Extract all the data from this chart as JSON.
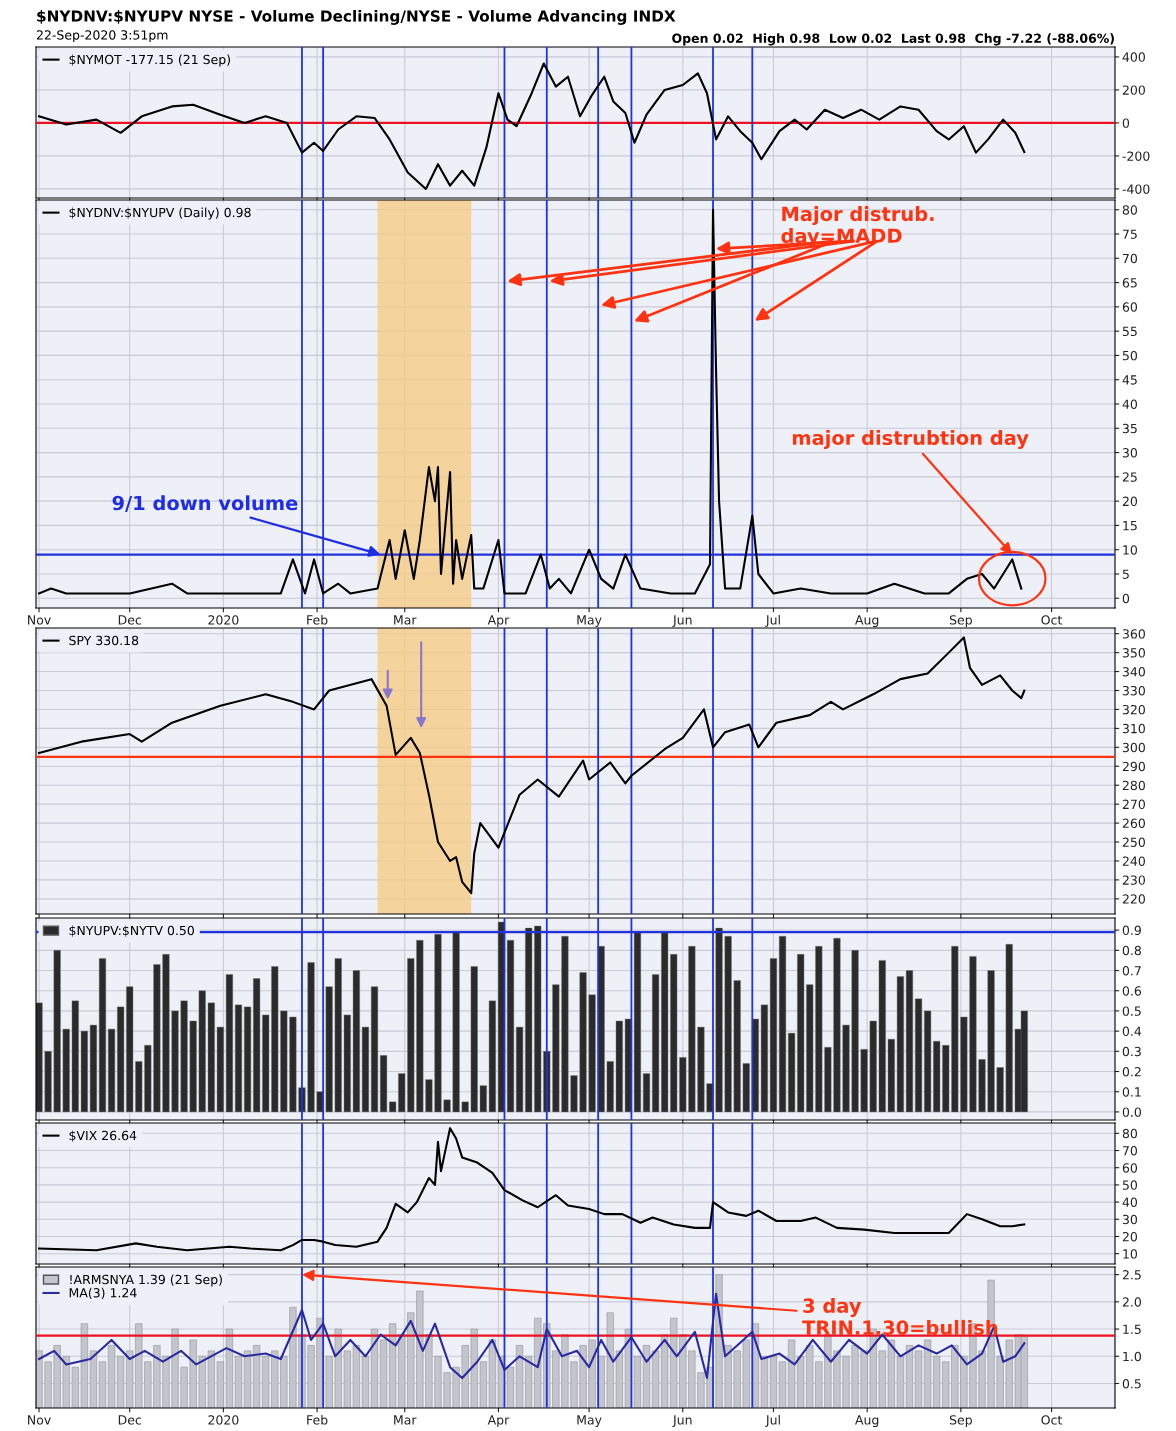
{
  "chart_data": [
    {
      "type": "line",
      "title": "$NYDNV:$NYUPV NYSE - Volume Declining/NYSE - Volume Advancing INDX",
      "subtitle": "22-Sep-2020 3:51pm",
      "annotations": [
        "Open 0.02  High 0.98  Low 0.02  Last 0.98  Chg -7.22 (-88.06%)"
      ],
      "series": [
        {
          "name": "$NYMOT -177.15 (21 Sep)",
          "color": "#000000",
          "x": [
            "2019-11-01",
            "2019-11-10",
            "2019-11-20",
            "2019-11-28",
            "2019-12-05",
            "2019-12-15",
            "2019-12-22",
            "2019-12-31",
            "2020-01-08",
            "2020-01-15",
            "2020-01-22",
            "2020-01-27",
            "2020-01-31",
            "2020-02-03",
            "2020-02-08",
            "2020-02-14",
            "2020-02-20",
            "2020-02-25",
            "2020-03-02",
            "2020-03-08",
            "2020-03-12",
            "2020-03-16",
            "2020-03-20",
            "2020-03-24",
            "2020-03-28",
            "2020-04-01",
            "2020-04-04",
            "2020-04-07",
            "2020-04-12",
            "2020-04-16",
            "2020-04-20",
            "2020-04-24",
            "2020-04-28",
            "2020-05-02",
            "2020-05-06",
            "2020-05-09",
            "2020-05-13",
            "2020-05-16",
            "2020-05-20",
            "2020-05-26",
            "2020-06-01",
            "2020-06-06",
            "2020-06-09",
            "2020-06-12",
            "2020-06-16",
            "2020-06-20",
            "2020-06-24",
            "2020-06-27",
            "2020-07-03",
            "2020-07-08",
            "2020-07-12",
            "2020-07-18",
            "2020-07-24",
            "2020-07-30",
            "2020-08-05",
            "2020-08-12",
            "2020-08-18",
            "2020-08-24",
            "2020-08-28",
            "2020-09-02",
            "2020-09-06",
            "2020-09-10",
            "2020-09-15",
            "2020-09-19",
            "2020-09-22"
          ],
          "values": [
            40,
            -10,
            20,
            -60,
            40,
            100,
            110,
            50,
            0,
            40,
            0,
            -180,
            -120,
            -170,
            -40,
            40,
            30,
            -100,
            -300,
            -400,
            -250,
            -380,
            -290,
            -380,
            -150,
            180,
            20,
            -20,
            180,
            360,
            220,
            280,
            40,
            170,
            280,
            130,
            60,
            -120,
            50,
            200,
            230,
            300,
            180,
            -100,
            40,
            -50,
            -120,
            -220,
            -50,
            20,
            -40,
            80,
            30,
            80,
            20,
            100,
            80,
            -50,
            -100,
            -20,
            -180,
            -100,
            20,
            -60,
            -177
          ]
        }
      ],
      "xlim": [
        "2019-10-31",
        "2020-10-22"
      ],
      "ylim": [
        -455,
        460
      ],
      "yticks": [
        -400,
        -200,
        0,
        200,
        400
      ],
      "xticks": [
        {
          "value": "2019-11-01",
          "label": null
        },
        {
          "value": "2019-12-01",
          "label": null
        },
        {
          "value": "2020-01-01",
          "label": null
        },
        {
          "value": "2020-02-01",
          "label": null
        },
        {
          "value": "2020-03-01",
          "label": null
        },
        {
          "value": "2020-04-01",
          "label": null
        },
        {
          "value": "2020-05-01",
          "label": null
        },
        {
          "value": "2020-06-01",
          "label": null
        },
        {
          "value": "2020-07-01",
          "label": null
        },
        {
          "value": "2020-08-01",
          "label": null
        },
        {
          "value": "2020-09-01",
          "label": null
        },
        {
          "value": "2020-10-01",
          "label": null
        }
      ],
      "tick_labels": "y",
      "grid": true,
      "legend": "top left",
      "ref_lines": [
        {
          "axis": "y",
          "value": 0,
          "color": "#ee1122"
        },
        {
          "axis": "x",
          "value": "2020-01-27",
          "color": "#2233dd"
        },
        {
          "axis": "x",
          "value": "2020-02-03",
          "color": "#2233dd"
        },
        {
          "axis": "x",
          "value": "2020-04-03",
          "color": "#2233dd"
        },
        {
          "axis": "x",
          "value": "2020-04-17",
          "color": "#2233dd"
        },
        {
          "axis": "x",
          "value": "2020-05-04",
          "color": "#2233dd"
        },
        {
          "axis": "x",
          "value": "2020-05-15",
          "color": "#2233dd"
        },
        {
          "axis": "x",
          "value": "2020-06-11",
          "color": "#2233dd"
        },
        {
          "axis": "x",
          "value": "2020-06-24",
          "color": "#2233dd"
        }
      ]
    },
    {
      "type": "line",
      "annotations": [
        "Major distrub.\nday=MADD",
        {
          "text": "9/1 down volume",
          "x": "2020-02-22",
          "y": 9
        },
        {
          "text": "major distrubtion day",
          "x": "2020-09-18",
          "y": 9
        }
      ],
      "series": [
        {
          "name": "$NYDNV:$NYUPV (Daily) 0.98",
          "color": "#000000",
          "x": [
            "2019-11-01",
            "2019-11-05",
            "2019-11-10",
            "2019-11-20",
            "2019-12-01",
            "2019-12-15",
            "2019-12-20",
            "2020-01-05",
            "2020-01-20",
            "2020-01-24",
            "2020-01-28",
            "2020-01-31",
            "2020-02-03",
            "2020-02-08",
            "2020-02-12",
            "2020-02-21",
            "2020-02-25",
            "2020-02-27",
            "2020-03-01",
            "2020-03-04",
            "2020-03-06",
            "2020-03-09",
            "2020-03-11",
            "2020-03-12",
            "2020-03-13",
            "2020-03-16",
            "2020-03-17",
            "2020-03-18",
            "2020-03-20",
            "2020-03-23",
            "2020-03-24",
            "2020-03-27",
            "2020-04-01",
            "2020-04-03",
            "2020-04-10",
            "2020-04-15",
            "2020-04-18",
            "2020-04-21",
            "2020-04-25",
            "2020-05-01",
            "2020-05-05",
            "2020-05-09",
            "2020-05-13",
            "2020-05-18",
            "2020-05-28",
            "2020-06-05",
            "2020-06-10",
            "2020-06-11",
            "2020-06-12",
            "2020-06-13",
            "2020-06-15",
            "2020-06-20",
            "2020-06-24",
            "2020-06-26",
            "2020-07-01",
            "2020-07-10",
            "2020-07-20",
            "2020-08-01",
            "2020-08-10",
            "2020-08-20",
            "2020-08-28",
            "2020-09-03",
            "2020-09-08",
            "2020-09-12",
            "2020-09-18",
            "2020-09-21"
          ],
          "values": [
            1,
            2,
            1,
            1,
            1,
            3,
            1,
            1,
            1,
            8,
            1,
            8,
            1,
            3,
            1,
            2,
            12,
            4,
            14,
            4,
            12,
            27,
            20,
            27,
            5,
            26,
            3,
            12,
            4,
            13,
            2,
            2,
            12,
            1,
            1,
            9,
            2,
            4,
            1,
            10,
            4,
            2,
            9,
            2,
            1,
            1,
            7,
            80,
            47,
            20,
            2,
            2,
            17,
            5,
            1,
            2,
            1,
            1,
            3,
            1,
            1,
            4,
            5,
            2,
            8,
            2
          ]
        }
      ],
      "xlim": [
        "2019-10-31",
        "2020-10-22"
      ],
      "ylim": [
        -2,
        82
      ],
      "yticks": [
        0,
        5,
        10,
        15,
        20,
        25,
        30,
        35,
        40,
        45,
        50,
        55,
        60,
        65,
        70,
        75,
        80
      ],
      "xticks": [
        {
          "value": "2019-11-01",
          "label": "Nov"
        },
        {
          "value": "2019-12-01",
          "label": "Dec"
        },
        {
          "value": "2020-01-01",
          "label": "2020"
        },
        {
          "value": "2020-02-01",
          "label": "Feb"
        },
        {
          "value": "2020-03-01",
          "label": "Mar"
        },
        {
          "value": "2020-04-01",
          "label": "Apr"
        },
        {
          "value": "2020-05-01",
          "label": "May"
        },
        {
          "value": "2020-06-01",
          "label": "Jun"
        },
        {
          "value": "2020-07-01",
          "label": "Jul"
        },
        {
          "value": "2020-08-01",
          "label": "Aug"
        },
        {
          "value": "2020-09-01",
          "label": "Sep"
        },
        {
          "value": "2020-10-01",
          "label": "Oct"
        }
      ],
      "grid": true,
      "legend": "top left",
      "bands": [
        {
          "axis": "x",
          "from": "2020-02-21",
          "to": "2020-03-23",
          "color": "#f7c97f"
        }
      ],
      "ref_lines": [
        {
          "axis": "y",
          "value": 9,
          "color": "#2233dd"
        },
        {
          "axis": "x",
          "value": "2020-01-27",
          "color": "#2233dd"
        },
        {
          "axis": "x",
          "value": "2020-02-03",
          "color": "#2233dd"
        },
        {
          "axis": "x",
          "value": "2020-04-03",
          "color": "#2233dd"
        },
        {
          "axis": "x",
          "value": "2020-04-17",
          "color": "#2233dd"
        },
        {
          "axis": "x",
          "value": "2020-05-04",
          "color": "#2233dd"
        },
        {
          "axis": "x",
          "value": "2020-05-15",
          "color": "#2233dd"
        },
        {
          "axis": "x",
          "value": "2020-06-11",
          "color": "#2233dd"
        },
        {
          "axis": "x",
          "value": "2020-06-24",
          "color": "#2233dd"
        }
      ]
    },
    {
      "type": "line",
      "series": [
        {
          "name": "SPY 330.18",
          "color": "#000000",
          "x": [
            "2019-11-01",
            "2019-11-15",
            "2019-12-01",
            "2019-12-05",
            "2019-12-15",
            "2019-12-31",
            "2020-01-15",
            "2020-01-24",
            "2020-01-31",
            "2020-02-05",
            "2020-02-19",
            "2020-02-24",
            "2020-02-27",
            "2020-03-03",
            "2020-03-06",
            "2020-03-09",
            "2020-03-12",
            "2020-03-16",
            "2020-03-18",
            "2020-03-20",
            "2020-03-23",
            "2020-03-24",
            "2020-03-26",
            "2020-04-01",
            "2020-04-08",
            "2020-04-14",
            "2020-04-21",
            "2020-04-29",
            "2020-05-01",
            "2020-05-08",
            "2020-05-13",
            "2020-05-15",
            "2020-05-26",
            "2020-06-01",
            "2020-06-08",
            "2020-06-11",
            "2020-06-15",
            "2020-06-23",
            "2020-06-26",
            "2020-07-02",
            "2020-07-13",
            "2020-07-20",
            "2020-07-24",
            "2020-08-03",
            "2020-08-12",
            "2020-08-21",
            "2020-08-28",
            "2020-09-02",
            "2020-09-04",
            "2020-09-08",
            "2020-09-14",
            "2020-09-18",
            "2020-09-21",
            "2020-09-22"
          ],
          "values": [
            297,
            303,
            307,
            303,
            313,
            322,
            328,
            324,
            320,
            330,
            336,
            322,
            296,
            305,
            297,
            275,
            250,
            240,
            242,
            229,
            223,
            244,
            260,
            247,
            275,
            283,
            274,
            293,
            283,
            292,
            281,
            285,
            299,
            305,
            320,
            300,
            308,
            312,
            300,
            313,
            317,
            324,
            320,
            328,
            336,
            339,
            350,
            358,
            342,
            333,
            338,
            330,
            326,
            330
          ]
        }
      ],
      "xlim": [
        "2019-10-31",
        "2020-10-22"
      ],
      "ylim": [
        212,
        363
      ],
      "yticks": [
        220,
        230,
        240,
        250,
        260,
        270,
        280,
        290,
        300,
        310,
        320,
        330,
        340,
        350,
        360
      ],
      "xticks": [
        {
          "value": "2019-11-01",
          "label": null
        },
        {
          "value": "2019-12-01",
          "label": null
        },
        {
          "value": "2020-01-01",
          "label": null
        },
        {
          "value": "2020-02-01",
          "label": null
        },
        {
          "value": "2020-03-01",
          "label": null
        },
        {
          "value": "2020-04-01",
          "label": null
        },
        {
          "value": "2020-05-01",
          "label": null
        },
        {
          "value": "2020-06-01",
          "label": null
        },
        {
          "value": "2020-07-01",
          "label": null
        },
        {
          "value": "2020-08-01",
          "label": null
        },
        {
          "value": "2020-09-01",
          "label": null
        },
        {
          "value": "2020-10-01",
          "label": null
        }
      ],
      "tick_labels": "y",
      "grid": true,
      "legend": "top left",
      "bands": [
        {
          "axis": "x",
          "from": "2020-02-21",
          "to": "2020-03-23",
          "color": "#f7c97f"
        }
      ],
      "ref_lines": [
        {
          "axis": "y",
          "value": 295,
          "color": "#ff3311"
        },
        {
          "axis": "x",
          "value": "2020-01-27",
          "color": "#2233dd"
        },
        {
          "axis": "x",
          "value": "2020-02-03",
          "color": "#2233dd"
        },
        {
          "axis": "x",
          "value": "2020-04-03",
          "color": "#2233dd"
        },
        {
          "axis": "x",
          "value": "2020-04-17",
          "color": "#2233dd"
        },
        {
          "axis": "x",
          "value": "2020-05-04",
          "color": "#2233dd"
        },
        {
          "axis": "x",
          "value": "2020-05-15",
          "color": "#2233dd"
        },
        {
          "axis": "x",
          "value": "2020-06-11",
          "color": "#2233dd"
        },
        {
          "axis": "x",
          "value": "2020-06-24",
          "color": "#2233dd"
        }
      ]
    },
    {
      "type": "bar",
      "series": [
        {
          "name": "$NYUPV:$NYTV 0.50",
          "color": "#2b2b2b",
          "x": [
            "2019-11-01",
            "2019-11-04",
            "2019-11-07",
            "2019-11-10",
            "2019-11-13",
            "2019-11-16",
            "2019-11-19",
            "2019-11-22",
            "2019-11-25",
            "2019-11-28",
            "2019-12-01",
            "2019-12-04",
            "2019-12-07",
            "2019-12-10",
            "2019-12-13",
            "2019-12-16",
            "2019-12-19",
            "2019-12-22",
            "2019-12-25",
            "2019-12-28",
            "2019-12-31",
            "2020-01-03",
            "2020-01-06",
            "2020-01-09",
            "2020-01-12",
            "2020-01-15",
            "2020-01-18",
            "2020-01-21",
            "2020-01-24",
            "2020-01-27",
            "2020-01-30",
            "2020-02-02",
            "2020-02-05",
            "2020-02-08",
            "2020-02-11",
            "2020-02-14",
            "2020-02-17",
            "2020-02-20",
            "2020-02-23",
            "2020-02-26",
            "2020-02-29",
            "2020-03-03",
            "2020-03-06",
            "2020-03-09",
            "2020-03-12",
            "2020-03-15",
            "2020-03-18",
            "2020-03-21",
            "2020-03-24",
            "2020-03-27",
            "2020-03-30",
            "2020-04-02",
            "2020-04-05",
            "2020-04-08",
            "2020-04-11",
            "2020-04-14",
            "2020-04-17",
            "2020-04-20",
            "2020-04-23",
            "2020-04-26",
            "2020-04-29",
            "2020-05-02",
            "2020-05-05",
            "2020-05-08",
            "2020-05-11",
            "2020-05-14",
            "2020-05-17",
            "2020-05-20",
            "2020-05-23",
            "2020-05-26",
            "2020-05-29",
            "2020-06-01",
            "2020-06-04",
            "2020-06-07",
            "2020-06-10",
            "2020-06-13",
            "2020-06-16",
            "2020-06-19",
            "2020-06-22",
            "2020-06-25",
            "2020-06-28",
            "2020-07-01",
            "2020-07-04",
            "2020-07-07",
            "2020-07-10",
            "2020-07-13",
            "2020-07-16",
            "2020-07-19",
            "2020-07-22",
            "2020-07-25",
            "2020-07-28",
            "2020-07-31",
            "2020-08-03",
            "2020-08-06",
            "2020-08-09",
            "2020-08-12",
            "2020-08-15",
            "2020-08-18",
            "2020-08-21",
            "2020-08-24",
            "2020-08-27",
            "2020-08-30",
            "2020-09-02",
            "2020-09-05",
            "2020-09-08",
            "2020-09-11",
            "2020-09-14",
            "2020-09-17",
            "2020-09-20",
            "2020-09-22"
          ],
          "values": [
            0.54,
            0.3,
            0.8,
            0.41,
            0.55,
            0.4,
            0.43,
            0.76,
            0.41,
            0.52,
            0.62,
            0.25,
            0.33,
            0.73,
            0.78,
            0.5,
            0.55,
            0.45,
            0.6,
            0.54,
            0.42,
            0.68,
            0.53,
            0.52,
            0.66,
            0.48,
            0.72,
            0.5,
            0.47,
            0.12,
            0.74,
            0.1,
            0.62,
            0.76,
            0.48,
            0.7,
            0.42,
            0.62,
            0.28,
            0.05,
            0.19,
            0.76,
            0.85,
            0.16,
            0.88,
            0.06,
            0.89,
            0.05,
            0.72,
            0.13,
            0.55,
            0.94,
            0.85,
            0.42,
            0.91,
            0.92,
            0.3,
            0.63,
            0.87,
            0.18,
            0.69,
            0.58,
            0.82,
            0.25,
            0.45,
            0.46,
            0.89,
            0.19,
            0.68,
            0.89,
            0.78,
            0.27,
            0.82,
            0.42,
            0.14,
            0.91,
            0.87,
            0.65,
            0.24,
            0.46,
            0.53,
            0.76,
            0.87,
            0.39,
            0.78,
            0.63,
            0.82,
            0.32,
            0.86,
            0.43,
            0.8,
            0.31,
            0.45,
            0.75,
            0.36,
            0.67,
            0.7,
            0.56,
            0.5,
            0.35,
            0.33,
            0.82,
            0.47,
            0.77,
            0.26,
            0.7,
            0.22,
            0.83,
            0.41,
            0.5
          ]
        }
      ],
      "xlim": [
        "2019-10-31",
        "2020-10-22"
      ],
      "ylim": [
        -0.04,
        0.96
      ],
      "yticks": [
        {
          "value": 0,
          "label": "0.0"
        },
        0.1,
        0.2,
        0.3,
        0.4,
        0.5,
        0.6,
        0.7,
        0.8,
        0.9
      ],
      "xticks": [
        {
          "value": "2019-11-01",
          "label": null
        },
        {
          "value": "2019-12-01",
          "label": null
        },
        {
          "value": "2020-01-01",
          "label": null
        },
        {
          "value": "2020-02-01",
          "label": null
        },
        {
          "value": "2020-03-01",
          "label": null
        },
        {
          "value": "2020-04-01",
          "label": null
        },
        {
          "value": "2020-05-01",
          "label": null
        },
        {
          "value": "2020-06-01",
          "label": null
        },
        {
          "value": "2020-07-01",
          "label": null
        },
        {
          "value": "2020-08-01",
          "label": null
        },
        {
          "value": "2020-09-01",
          "label": null
        },
        {
          "value": "2020-10-01",
          "label": null
        }
      ],
      "tick_labels": "y",
      "grid": true,
      "legend": "top left",
      "ref_lines": [
        {
          "axis": "y",
          "value": 0.89,
          "color": "#2233dd"
        },
        {
          "axis": "x",
          "value": "2020-01-27",
          "color": "#2233dd"
        },
        {
          "axis": "x",
          "value": "2020-02-03",
          "color": "#2233dd"
        },
        {
          "axis": "x",
          "value": "2020-04-03",
          "color": "#2233dd"
        },
        {
          "axis": "x",
          "value": "2020-04-17",
          "color": "#2233dd"
        },
        {
          "axis": "x",
          "value": "2020-05-04",
          "color": "#2233dd"
        },
        {
          "axis": "x",
          "value": "2020-05-15",
          "color": "#2233dd"
        },
        {
          "axis": "x",
          "value": "2020-06-11",
          "color": "#2233dd"
        },
        {
          "axis": "x",
          "value": "2020-06-24",
          "color": "#2233dd"
        }
      ]
    },
    {
      "type": "line",
      "series": [
        {
          "name": "$VIX 26.64",
          "color": "#000000",
          "x": [
            "2019-11-01",
            "2019-11-20",
            "2019-12-03",
            "2019-12-10",
            "2019-12-20",
            "2020-01-03",
            "2020-01-10",
            "2020-01-20",
            "2020-01-24",
            "2020-01-27",
            "2020-01-31",
            "2020-02-03",
            "2020-02-07",
            "2020-02-14",
            "2020-02-21",
            "2020-02-24",
            "2020-02-27",
            "2020-03-02",
            "2020-03-05",
            "2020-03-09",
            "2020-03-11",
            "2020-03-12",
            "2020-03-13",
            "2020-03-16",
            "2020-03-18",
            "2020-03-20",
            "2020-03-25",
            "2020-03-30",
            "2020-04-03",
            "2020-04-09",
            "2020-04-14",
            "2020-04-20",
            "2020-04-24",
            "2020-05-01",
            "2020-05-06",
            "2020-05-12",
            "2020-05-18",
            "2020-05-22",
            "2020-05-29",
            "2020-06-05",
            "2020-06-10",
            "2020-06-11",
            "2020-06-16",
            "2020-06-22",
            "2020-06-26",
            "2020-07-02",
            "2020-07-10",
            "2020-07-15",
            "2020-07-22",
            "2020-07-31",
            "2020-08-10",
            "2020-08-20",
            "2020-08-28",
            "2020-09-03",
            "2020-09-08",
            "2020-09-14",
            "2020-09-18",
            "2020-09-22"
          ],
          "values": [
            13,
            12,
            16,
            14,
            12,
            14,
            13,
            12,
            15,
            18,
            18,
            17,
            15,
            14,
            17,
            25,
            39,
            34,
            40,
            54,
            50,
            75,
            58,
            83,
            77,
            66,
            63,
            57,
            47,
            41,
            37,
            44,
            38,
            36,
            33,
            33,
            28,
            31,
            27,
            25,
            25,
            40,
            34,
            32,
            35,
            29,
            29,
            31,
            25,
            24,
            22,
            22,
            22,
            33,
            30,
            26,
            26,
            27
          ]
        }
      ],
      "xlim": [
        "2019-10-31",
        "2020-10-22"
      ],
      "ylim": [
        4,
        86
      ],
      "yticks": [
        10,
        20,
        30,
        40,
        50,
        60,
        70,
        80
      ],
      "xticks": [
        {
          "value": "2019-11-01",
          "label": null
        },
        {
          "value": "2019-12-01",
          "label": null
        },
        {
          "value": "2020-01-01",
          "label": null
        },
        {
          "value": "2020-02-01",
          "label": null
        },
        {
          "value": "2020-03-01",
          "label": null
        },
        {
          "value": "2020-04-01",
          "label": null
        },
        {
          "value": "2020-05-01",
          "label": null
        },
        {
          "value": "2020-06-01",
          "label": null
        },
        {
          "value": "2020-07-01",
          "label": null
        },
        {
          "value": "2020-08-01",
          "label": null
        },
        {
          "value": "2020-09-01",
          "label": null
        },
        {
          "value": "2020-10-01",
          "label": null
        }
      ],
      "tick_labels": "y",
      "grid": true,
      "legend": "top left",
      "ref_lines": [
        {
          "axis": "x",
          "value": "2020-01-27",
          "color": "#2233dd"
        },
        {
          "axis": "x",
          "value": "2020-02-03",
          "color": "#2233dd"
        },
        {
          "axis": "x",
          "value": "2020-04-03",
          "color": "#2233dd"
        },
        {
          "axis": "x",
          "value": "2020-04-17",
          "color": "#2233dd"
        },
        {
          "axis": "x",
          "value": "2020-05-04",
          "color": "#2233dd"
        },
        {
          "axis": "x",
          "value": "2020-05-15",
          "color": "#2233dd"
        },
        {
          "axis": "x",
          "value": "2020-06-11",
          "color": "#2233dd"
        },
        {
          "axis": "x",
          "value": "2020-06-24",
          "color": "#2233dd"
        }
      ]
    },
    {
      "type": "bar",
      "annotations": [
        {
          "text": "3 day\nTRIN.1.30=bullish",
          "x": "2020-01-27",
          "y": 2.5
        }
      ],
      "series": [
        {
          "name": "!ARMSNYA 1.39 (21 Sep)",
          "color": "#c4c4cc",
          "x": [
            "2019-11-01",
            "2019-11-04",
            "2019-11-07",
            "2019-11-10",
            "2019-11-13",
            "2019-11-16",
            "2019-11-19",
            "2019-11-22",
            "2019-11-25",
            "2019-11-28",
            "2019-12-01",
            "2019-12-04",
            "2019-12-07",
            "2019-12-10",
            "2019-12-13",
            "2019-12-16",
            "2019-12-19",
            "2019-12-22",
            "2019-12-25",
            "2019-12-28",
            "2019-12-31",
            "2020-01-03",
            "2020-01-06",
            "2020-01-09",
            "2020-01-12",
            "2020-01-15",
            "2020-01-18",
            "2020-01-21",
            "2020-01-24",
            "2020-01-27",
            "2020-01-30",
            "2020-02-02",
            "2020-02-05",
            "2020-02-08",
            "2020-02-11",
            "2020-02-14",
            "2020-02-17",
            "2020-02-20",
            "2020-02-23",
            "2020-02-26",
            "2020-02-29",
            "2020-03-03",
            "2020-03-06",
            "2020-03-09",
            "2020-03-12",
            "2020-03-15",
            "2020-03-18",
            "2020-03-21",
            "2020-03-24",
            "2020-03-27",
            "2020-03-30",
            "2020-04-02",
            "2020-04-05",
            "2020-04-08",
            "2020-04-11",
            "2020-04-14",
            "2020-04-17",
            "2020-04-20",
            "2020-04-23",
            "2020-04-26",
            "2020-04-29",
            "2020-05-02",
            "2020-05-05",
            "2020-05-08",
            "2020-05-11",
            "2020-05-14",
            "2020-05-17",
            "2020-05-20",
            "2020-05-23",
            "2020-05-26",
            "2020-05-29",
            "2020-06-01",
            "2020-06-04",
            "2020-06-07",
            "2020-06-10",
            "2020-06-13",
            "2020-06-16",
            "2020-06-19",
            "2020-06-22",
            "2020-06-25",
            "2020-06-28",
            "2020-07-01",
            "2020-07-04",
            "2020-07-07",
            "2020-07-10",
            "2020-07-13",
            "2020-07-16",
            "2020-07-19",
            "2020-07-22",
            "2020-07-25",
            "2020-07-28",
            "2020-07-31",
            "2020-08-03",
            "2020-08-06",
            "2020-08-09",
            "2020-08-12",
            "2020-08-15",
            "2020-08-18",
            "2020-08-21",
            "2020-08-24",
            "2020-08-27",
            "2020-08-30",
            "2020-09-02",
            "2020-09-05",
            "2020-09-08",
            "2020-09-11",
            "2020-09-14",
            "2020-09-17",
            "2020-09-20",
            "2020-09-22"
          ],
          "values": [
            1.1,
            0.9,
            1.2,
            1.0,
            0.8,
            1.6,
            1.1,
            0.9,
            1.2,
            1.0,
            1.1,
            1.6,
            0.9,
            1.2,
            1.0,
            1.5,
            0.8,
            1.3,
            1.0,
            1.1,
            0.9,
            1.5,
            1.0,
            1.1,
            1.2,
            1.0,
            1.1,
            1.0,
            1.9,
            1.4,
            1.2,
            1.7,
            1.0,
            1.5,
            1.1,
            1.2,
            1.0,
            1.5,
            1.3,
            1.6,
            1.4,
            1.8,
            2.2,
            1.4,
            1.0,
            0.7,
            0.8,
            1.2,
            1.5,
            0.9,
            1.3,
            1.0,
            0.8,
            1.2,
            1.0,
            1.7,
            1.6,
            1.1,
            1.4,
            0.9,
            1.2,
            1.3,
            1.0,
            1.8,
            1.1,
            1.5,
            1.0,
            1.2,
            1.1,
            1.4,
            1.7,
            1.4,
            1.1,
            0.7,
            0.8,
            2.5,
            1.2,
            1.1,
            1.3,
            1.6,
            1.0,
            1.0,
            0.9,
            1.3,
            1.0,
            1.2,
            0.9,
            1.4,
            1.1,
            1.0,
            1.2,
            1.1,
            1.5,
            1.1,
            1.3,
            1.0,
            1.2,
            1.1,
            1.3,
            1.0,
            0.9,
            1.2,
            1.0,
            1.6,
            1.1,
            2.4,
            1.0,
            1.3,
            1.4,
            1.39
          ]
        },
        {
          "name": "MA(3) 1.24",
          "color": "#2a2aa0",
          "type": "line",
          "x": [
            "2019-11-01",
            "2019-11-06",
            "2019-11-10",
            "2019-11-18",
            "2019-11-25",
            "2019-12-01",
            "2019-12-06",
            "2019-12-12",
            "2019-12-18",
            "2019-12-23",
            "2020-01-02",
            "2020-01-08",
            "2020-01-15",
            "2020-01-20",
            "2020-01-27",
            "2020-01-30",
            "2020-02-03",
            "2020-02-07",
            "2020-02-12",
            "2020-02-17",
            "2020-02-22",
            "2020-02-27",
            "2020-03-03",
            "2020-03-07",
            "2020-03-11",
            "2020-03-16",
            "2020-03-20",
            "2020-03-25",
            "2020-03-30",
            "2020-04-03",
            "2020-04-08",
            "2020-04-14",
            "2020-04-17",
            "2020-04-22",
            "2020-04-27",
            "2020-05-01",
            "2020-05-05",
            "2020-05-09",
            "2020-05-15",
            "2020-05-20",
            "2020-05-26",
            "2020-05-30",
            "2020-06-05",
            "2020-06-09",
            "2020-06-12",
            "2020-06-15",
            "2020-06-20",
            "2020-06-24",
            "2020-06-27",
            "2020-07-03",
            "2020-07-08",
            "2020-07-14",
            "2020-07-20",
            "2020-07-26",
            "2020-08-01",
            "2020-08-06",
            "2020-08-12",
            "2020-08-18",
            "2020-08-24",
            "2020-08-29",
            "2020-09-03",
            "2020-09-08",
            "2020-09-12",
            "2020-09-15",
            "2020-09-19",
            "2020-09-22"
          ],
          "values": [
            0.95,
            1.1,
            0.85,
            0.95,
            1.3,
            0.95,
            1.1,
            0.9,
            1.1,
            0.85,
            1.15,
            1.0,
            1.05,
            0.95,
            1.85,
            1.3,
            1.6,
            1.0,
            1.3,
            1.0,
            1.4,
            1.2,
            1.65,
            1.1,
            1.6,
            0.8,
            0.6,
            0.9,
            1.3,
            0.75,
            1.0,
            0.8,
            1.5,
            1.0,
            1.1,
            0.8,
            1.3,
            0.9,
            1.35,
            0.9,
            1.3,
            1.0,
            1.45,
            0.6,
            2.15,
            1.0,
            1.25,
            1.45,
            0.95,
            1.05,
            0.85,
            1.3,
            0.9,
            1.3,
            1.05,
            1.4,
            1.0,
            1.2,
            1.05,
            1.2,
            0.85,
            1.05,
            1.55,
            0.9,
            1.0,
            1.24
          ]
        }
      ],
      "xlim": [
        "2019-10-31",
        "2020-10-22"
      ],
      "ylim": [
        0.05,
        2.64
      ],
      "yticks": [
        0.5,
        {
          "value": 1,
          "label": "1.0"
        },
        1.5,
        {
          "value": 2,
          "label": "2.0"
        },
        2.5
      ],
      "xticks": [
        {
          "value": "2019-11-01",
          "label": "Nov"
        },
        {
          "value": "2019-12-01",
          "label": "Dec"
        },
        {
          "value": "2020-01-01",
          "label": "2020"
        },
        {
          "value": "2020-02-01",
          "label": "Feb"
        },
        {
          "value": "2020-03-01",
          "label": "Mar"
        },
        {
          "value": "2020-04-01",
          "label": "Apr"
        },
        {
          "value": "2020-05-01",
          "label": "May"
        },
        {
          "value": "2020-06-01",
          "label": "Jun"
        },
        {
          "value": "2020-07-01",
          "label": "Jul"
        },
        {
          "value": "2020-08-01",
          "label": "Aug"
        },
        {
          "value": "2020-09-01",
          "label": "Sep"
        },
        {
          "value": "2020-10-01",
          "label": "Oct"
        }
      ],
      "grid": true,
      "legend": "top left",
      "ref_lines": [
        {
          "axis": "y",
          "value": 1.38,
          "color": "#ee1122"
        },
        {
          "axis": "x",
          "value": "2020-01-27",
          "color": "#2233dd"
        },
        {
          "axis": "x",
          "value": "2020-02-03",
          "color": "#2233dd"
        },
        {
          "axis": "x",
          "value": "2020-04-03",
          "color": "#2233dd"
        },
        {
          "axis": "x",
          "value": "2020-04-17",
          "color": "#2233dd"
        },
        {
          "axis": "x",
          "value": "2020-05-04",
          "color": "#2233dd"
        },
        {
          "axis": "x",
          "value": "2020-05-15",
          "color": "#2233dd"
        },
        {
          "axis": "x",
          "value": "2020-06-11",
          "color": "#2233dd"
        },
        {
          "axis": "x",
          "value": "2020-06-24",
          "color": "#2233dd"
        }
      ]
    }
  ]
}
